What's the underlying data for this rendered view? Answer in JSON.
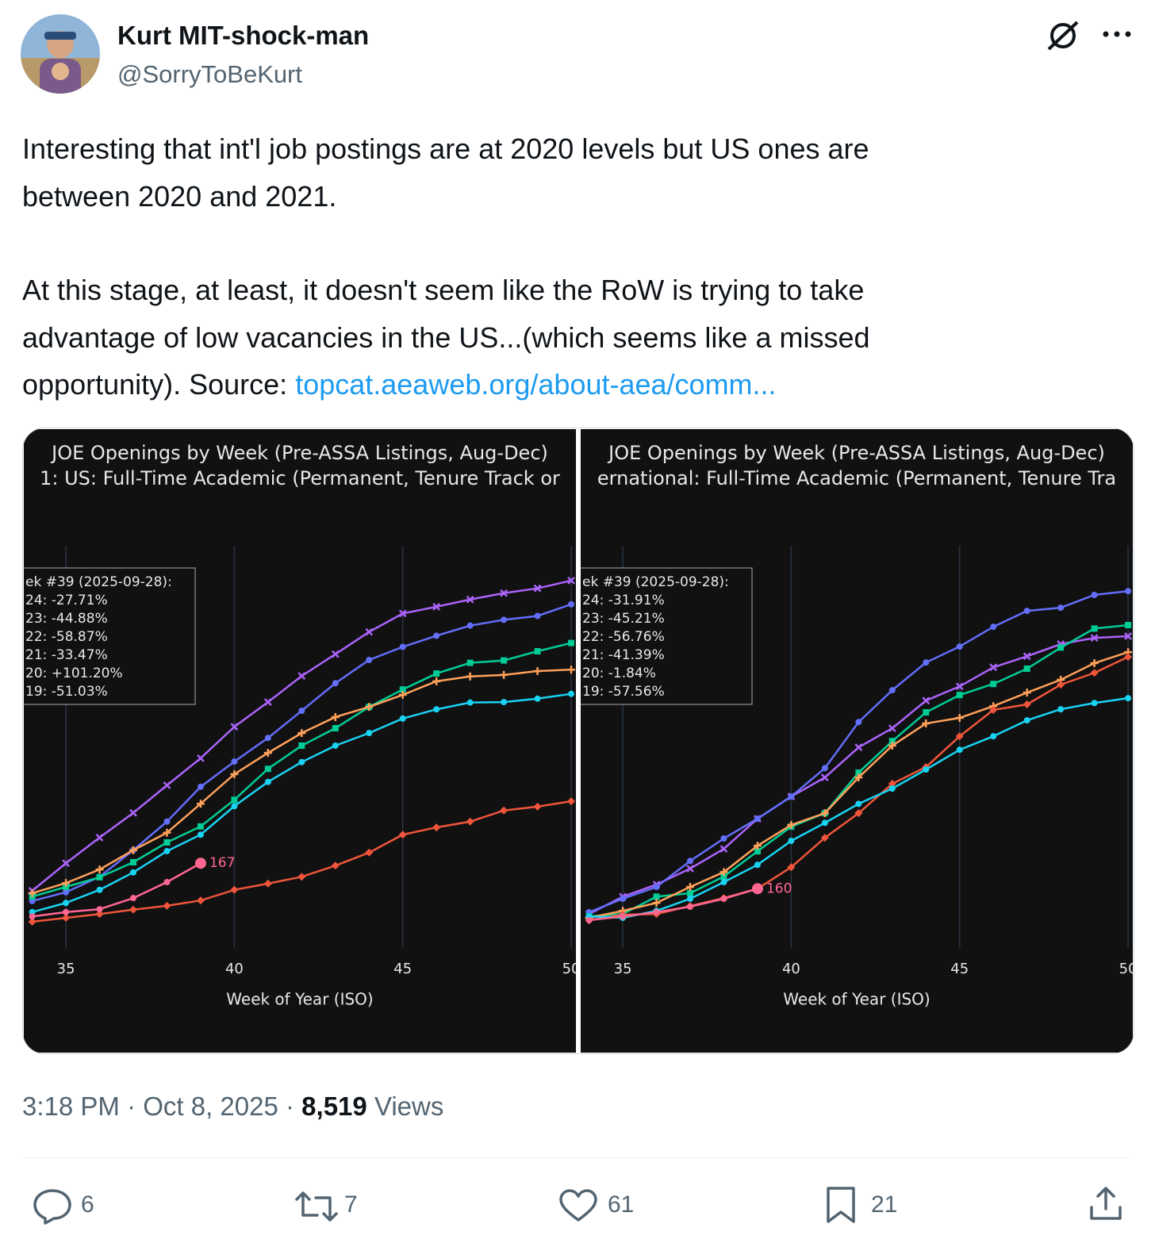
{
  "user": {
    "name": "Kurt MIT-shock-man",
    "handle": "@SorryToBeKurt"
  },
  "text_lines": [
    "Interesting that int'l job postings are at 2020 levels but US ones are",
    "between 2020 and 2021.",
    "At this stage, at least, it doesn't seem like the RoW is trying to take",
    "advantage of low vacancies in the US...(which seems like a missed",
    "opportunity). Source: "
  ],
  "link": "topcat.aeaweb.org/about-aea/comm...",
  "chart_data": [
    {
      "type": "line",
      "title_lines": [
        "JOE Openings by Week (Pre-ASSA Listings, Aug-Dec)",
        "1: US: Full-Time Academic (Permanent, Tenure Track or"
      ],
      "x_label": "Week of Year (ISO)",
      "x": [
        34,
        35,
        36,
        37,
        38,
        39,
        40,
        41,
        42,
        43,
        44,
        45,
        46,
        47,
        48,
        49,
        50
      ],
      "xlim": [
        33.75,
        50.14
      ],
      "xticks": [
        35,
        40,
        45,
        50
      ],
      "ylim": [
        -8,
        823
      ],
      "grid": true,
      "hover_lines": [
        "ek #39 (2025-09-28):",
        "24:  -27.71%",
        "23:  -44.88%",
        "22:  -58.87%",
        "21:  -33.47%",
        "20:  +101.20%",
        "19:  -51.03%"
      ],
      "series": [
        {
          "color": "#ab63fa",
          "marker": "x",
          "values": [
            110,
            167,
            220,
            271,
            328,
            384,
            449,
            500,
            554,
            599,
            645,
            683,
            697,
            712,
            725,
            735,
            751
          ]
        },
        {
          "color": "#636efa",
          "marker": "circle",
          "values": [
            89,
            107,
            139,
            194,
            253,
            325,
            377,
            426,
            482,
            539,
            587,
            614,
            637,
            658,
            670,
            678,
            702
          ]
        },
        {
          "color": "#00cc96",
          "marker": "square",
          "values": [
            98,
            118,
            138,
            169,
            210,
            243,
            298,
            362,
            410,
            446,
            490,
            526,
            559,
            581,
            586,
            605,
            622
          ]
        },
        {
          "color": "#ffa15a",
          "marker": "cross",
          "values": [
            105,
            126,
            154,
            194,
            230,
            290,
            351,
            395,
            436,
            469,
            490,
            515,
            543,
            553,
            556,
            564,
            567
          ]
        },
        {
          "color": "#ef553b",
          "marker": "diamond",
          "values": [
            46,
            54,
            62,
            71,
            79,
            90,
            112,
            125,
            139,
            162,
            189,
            226,
            241,
            253,
            276,
            284,
            295
          ]
        },
        {
          "color": "#19d3f3",
          "marker": "circle",
          "values": [
            66,
            85,
            112,
            148,
            192,
            226,
            285,
            335,
            376,
            410,
            436,
            466,
            485,
            499,
            500,
            507,
            517
          ]
        },
        {
          "color": "#ff6692",
          "marker": "circle",
          "annotate_last": true,
          "values": [
            57,
            66,
            72,
            95,
            128,
            167,
            null,
            null,
            null,
            null,
            null,
            null,
            null,
            null,
            null,
            null,
            null
          ]
        }
      ]
    },
    {
      "type": "line",
      "title_lines": [
        "JOE Openings by Week (Pre-ASSA Listings, Aug-Dec)",
        "ernational: Full-Time Academic (Permanent, Tenure Tra"
      ],
      "x_label": "Week of Year (ISO)",
      "x": [
        34,
        35,
        36,
        37,
        38,
        39,
        40,
        41,
        42,
        43,
        44,
        45,
        46,
        47,
        48,
        49,
        50
      ],
      "xlim": [
        33.75,
        50.14
      ],
      "xticks": [
        35,
        40,
        45,
        50
      ],
      "ylim": [
        -11,
        1150
      ],
      "grid": true,
      "hover_lines": [
        "ek #39 (2025-09-28):",
        "24:  -31.91%",
        "23:  -45.21%",
        "22:  -56.76%",
        "21:  -41.39%",
        "20:  -1.84%",
        "19:  -57.56%"
      ],
      "series": [
        {
          "color": "#ab63fa",
          "marker": "x",
          "values": [
            87,
            137,
            172,
            218,
            275,
            362,
            426,
            481,
            568,
            623,
            703,
            744,
            799,
            831,
            866,
            884,
            889
          ]
        },
        {
          "color": "#636efa",
          "marker": "circle",
          "values": [
            92,
            131,
            165,
            240,
            305,
            362,
            426,
            508,
            641,
            733,
            813,
            859,
            916,
            962,
            971,
            1008,
            1019
          ]
        },
        {
          "color": "#00cc96",
          "marker": "square",
          "values": [
            80,
            87,
            137,
            147,
            195,
            268,
            339,
            378,
            495,
            586,
            669,
            719,
            751,
            795,
            856,
            911,
            921
          ]
        },
        {
          "color": "#ffa15a",
          "marker": "cross",
          "values": [
            76,
            96,
            119,
            165,
            208,
            284,
            344,
            378,
            481,
            573,
            637,
            653,
            687,
            726,
            763,
            811,
            843
          ]
        },
        {
          "color": "#ef553b",
          "marker": "diamond",
          "values": [
            69,
            85,
            87,
            110,
            133,
            160,
            222,
            307,
            378,
            463,
            511,
            600,
            676,
            692,
            749,
            783,
            829
          ]
        },
        {
          "color": "#19d3f3",
          "marker": "circle",
          "values": [
            80,
            76,
            96,
            131,
            179,
            229,
            298,
            350,
            405,
            449,
            504,
            561,
            600,
            646,
            678,
            696,
            710
          ]
        },
        {
          "color": "#ff6692",
          "marker": "circle",
          "annotate_last": true,
          "values": [
            69,
            80,
            92,
            108,
            131,
            160,
            null,
            null,
            null,
            null,
            null,
            null,
            null,
            null,
            null,
            null,
            null
          ]
        }
      ]
    }
  ],
  "meta": {
    "time": "3:18 PM · Oct 8, 2025 ·",
    "views_count": "8,519",
    "views_label": "Views"
  },
  "actions": {
    "replies": 6,
    "reposts": 7,
    "likes": 61,
    "bookmarks": 21
  }
}
